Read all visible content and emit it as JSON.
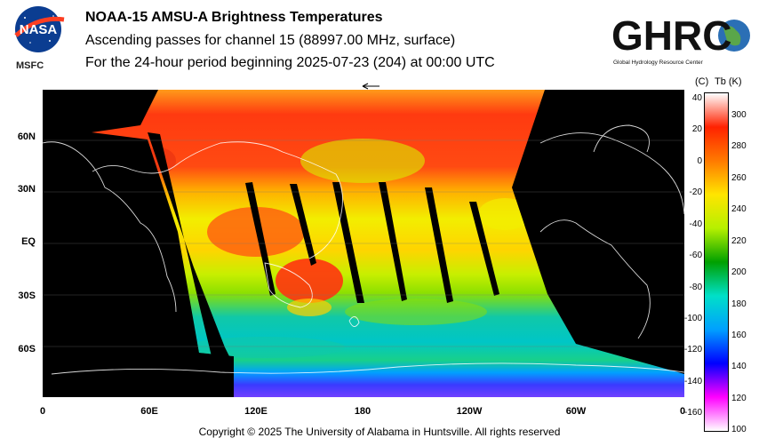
{
  "header": {
    "agency_label": "MSFC",
    "title": "NOAA-15 AMSU-A Brightness Temperatures",
    "subtitle": "Ascending passes for channel 15 (88997.00 MHz, surface)",
    "period": "For the 24-hour period beginning 2025-07-23 (204) at 00:00 UTC"
  },
  "logos": {
    "left": "NASA meatball logo",
    "right_text": "GHRC",
    "right_caption": "Global Hydrology Resource Center"
  },
  "map": {
    "lat_labels": [
      "60N",
      "30N",
      "EQ",
      "30S",
      "60S"
    ],
    "lon_labels": [
      "0",
      "60E",
      "120E",
      "180",
      "120W",
      "60W",
      "0"
    ]
  },
  "colorbar": {
    "unit_c": "(C)",
    "unit_k": "Tb (K)",
    "celsius_ticks": [
      "40",
      "20",
      "0",
      "-20",
      "-40",
      "-60",
      "-80",
      "-100",
      "-120",
      "-140",
      "-160"
    ],
    "kelvin_ticks": [
      "300",
      "280",
      "260",
      "240",
      "220",
      "200",
      "180",
      "160",
      "140",
      "120",
      "100"
    ],
    "colors": [
      "#ffffff",
      "#ff2200",
      "#ff7a00",
      "#ffe500",
      "#b6f000",
      "#00a000",
      "#00e0c8",
      "#00a0ff",
      "#0000ff",
      "#ff00ff",
      "#ffffff"
    ]
  },
  "footer": {
    "copyright": "Copyright © 2025 The University of Alabama in Huntsville.  All rights reserved"
  }
}
